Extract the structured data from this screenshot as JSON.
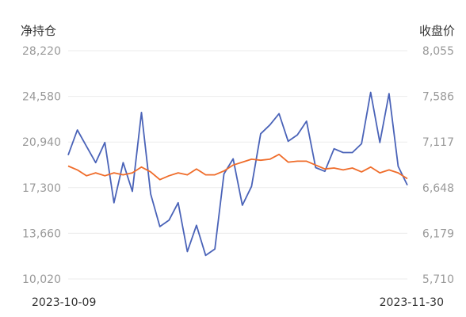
{
  "chart_data": {
    "type": "line",
    "left_axis_title": "净持仓",
    "right_axis_title": "收盘价",
    "x_start_label": "2023-10-09",
    "x_end_label": "2023-11-30",
    "left_ticks": [
      "28,220",
      "24,580",
      "20,940",
      "17,300",
      "13,660",
      "10,020"
    ],
    "right_ticks": [
      "8,055",
      "7,586",
      "7,117",
      "6,648",
      "6,179",
      "5,710"
    ],
    "left_ylim": [
      10020,
      28220
    ],
    "right_ylim": [
      5710,
      8055
    ],
    "grid": true,
    "series": [
      {
        "axis": "left",
        "color": "#4a63b8",
        "values": [
          19900,
          21900,
          20600,
          19300,
          20900,
          16100,
          19300,
          17000,
          23300,
          16800,
          14200,
          14700,
          16100,
          12200,
          14300,
          11900,
          12400,
          18400,
          19600,
          15900,
          17400,
          21600,
          22300,
          23200,
          21000,
          21500,
          22600,
          18900,
          18600,
          20400,
          20100,
          20100,
          20800,
          24900,
          20900,
          24800,
          19000,
          17500
        ]
      },
      {
        "axis": "right",
        "color": "#ef6c2a",
        "values": [
          6870,
          6830,
          6770,
          6800,
          6770,
          6800,
          6780,
          6800,
          6860,
          6810,
          6730,
          6770,
          6800,
          6780,
          6840,
          6780,
          6780,
          6820,
          6880,
          6910,
          6940,
          6930,
          6940,
          6990,
          6910,
          6920,
          6920,
          6880,
          6840,
          6850,
          6830,
          6850,
          6810,
          6860,
          6800,
          6830,
          6800,
          6740
        ]
      }
    ]
  }
}
